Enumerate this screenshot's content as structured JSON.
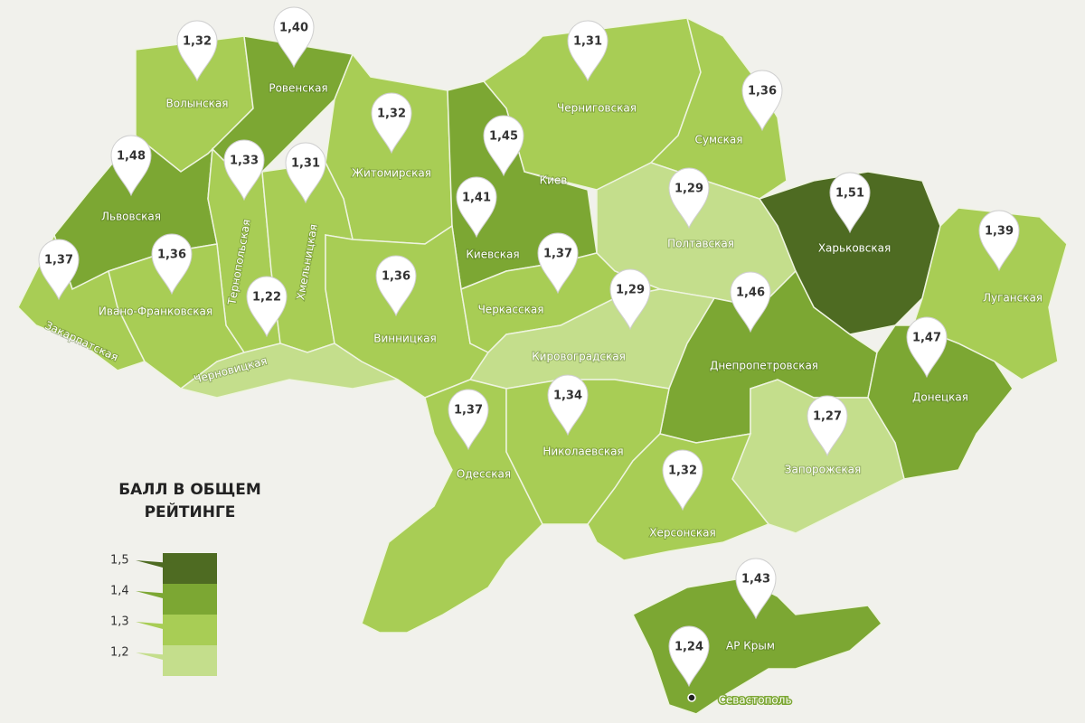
{
  "legend": {
    "title": "БАЛЛ В ОБЩЕМ РЕЙТИНГЕ",
    "ticks": [
      {
        "value": 1.5,
        "label": "1,5"
      },
      {
        "value": 1.4,
        "label": "1,4"
      },
      {
        "value": 1.3,
        "label": "1,3"
      },
      {
        "value": 1.2,
        "label": "1,2"
      }
    ],
    "colors": [
      "#4e6b22",
      "#7ca733",
      "#a8cd55",
      "#c4de8c"
    ]
  },
  "chart_data": {
    "type": "choropleth",
    "categories": [
      "Волынская",
      "Ровенская",
      "Житомирская",
      "Киев",
      "Черниговская",
      "Сумская",
      "Львовская",
      "Тернопольская",
      "Хмельницкая",
      "Киевская",
      "Полтавская",
      "Харьковская",
      "Луганская",
      "Закарпатская",
      "Ивано-Франковская",
      "Черновицкая",
      "Винницкая",
      "Черкасская",
      "Кировоградская",
      "Днепропетровская",
      "Донецкая",
      "Одесская",
      "Николаевская",
      "Запорожская",
      "Херсонская",
      "АР Крым",
      "Севастополь"
    ],
    "values": [
      1.32,
      1.4,
      1.32,
      1.45,
      1.31,
      1.36,
      1.48,
      1.33,
      1.31,
      1.41,
      1.29,
      1.51,
      1.39,
      1.37,
      1.36,
      1.22,
      1.36,
      1.37,
      1.29,
      1.46,
      1.47,
      1.37,
      1.34,
      1.27,
      1.32,
      1.43,
      1.24
    ],
    "value_labels": [
      "1,32",
      "1,40",
      "1,32",
      "1,45",
      "1,31",
      "1,36",
      "1,48",
      "1,33",
      "1,31",
      "1,41",
      "1,29",
      "1,51",
      "1,39",
      "1,37",
      "1,36",
      "1,22",
      "1,36",
      "1,37",
      "1,29",
      "1,46",
      "1,47",
      "1,37",
      "1,34",
      "1,27",
      "1,32",
      "1,43",
      "1,24"
    ]
  }
}
